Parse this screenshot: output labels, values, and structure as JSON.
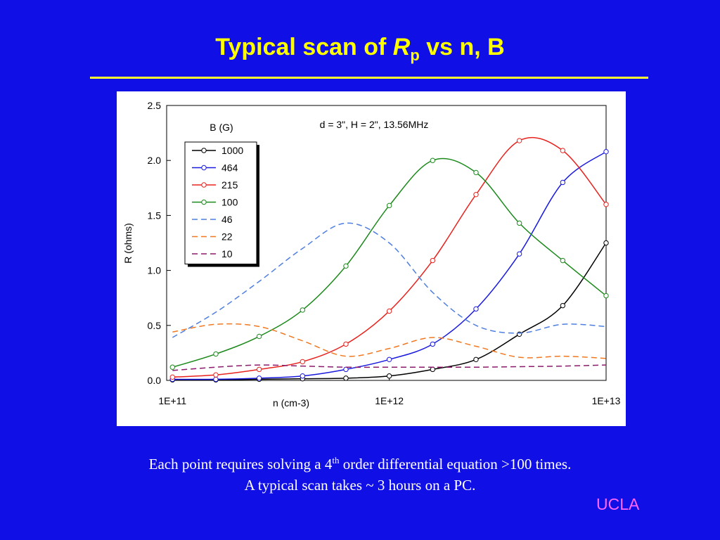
{
  "slide": {
    "title": {
      "prefix": "Typical scan of ",
      "symbol": "R",
      "subscript": "p",
      "suffix": " vs n, B"
    },
    "caption": {
      "line1_start": "Each point requires solving a 4",
      "line1_sup": "th",
      "line1_end": " order differential equation >100 times.",
      "line2": "A typical scan takes ~ 3 hours on a PC."
    },
    "logo": "UCLA"
  },
  "chart_data": {
    "type": "line",
    "annotation": "d = 3\", H = 2\", 13.56MHz",
    "legend_title": "B (G)",
    "legend": "upper left",
    "x_label": "n (cm-3)",
    "y_label": "R (ohms)",
    "xlog": true,
    "xlim": [
      94000000000.0,
      10000000000000.0
    ],
    "xticks": [
      {
        "value": 100000000000.0,
        "label": "1E+11"
      },
      {
        "value": 1000000000000.0,
        "label": "1E+12"
      },
      {
        "value": 10000000000000.0,
        "label": "1E+13"
      }
    ],
    "ylim": [
      0,
      2.5
    ],
    "yticks": [
      {
        "value": 0,
        "label": "0.0"
      },
      0.5,
      {
        "value": 1,
        "label": "1.0"
      },
      1.5,
      {
        "value": 2,
        "label": "2.0"
      },
      2.5
    ],
    "x": [
      100000000000.0,
      158500000000.0,
      251200000000.0,
      398100000000.0,
      631000000000.0,
      1000000000000.0,
      1585000000000.0,
      2512000000000.0,
      3981000000000.0,
      6310000000000.0,
      10000000000000.0
    ],
    "series": [
      {
        "name": "1000",
        "color": "#000000",
        "markers": true,
        "values": [
          0.005,
          0.005,
          0.01,
          0.015,
          0.02,
          0.04,
          0.1,
          0.19,
          0.42,
          0.68,
          1.25
        ]
      },
      {
        "name": "464",
        "color": "#1a1adf",
        "markers": true,
        "values": [
          0.01,
          0.01,
          0.02,
          0.04,
          0.1,
          0.19,
          0.33,
          0.65,
          1.15,
          1.8,
          2.08
        ]
      },
      {
        "name": "215",
        "color": "#e8231e",
        "markers": true,
        "values": [
          0.03,
          0.05,
          0.1,
          0.17,
          0.33,
          0.63,
          1.09,
          1.69,
          2.18,
          2.09,
          1.6
        ]
      },
      {
        "name": "100",
        "color": "#1b8a1b",
        "markers": true,
        "values": [
          0.12,
          0.24,
          0.4,
          0.64,
          1.04,
          1.59,
          2.0,
          1.89,
          1.43,
          1.09,
          0.77
        ]
      },
      {
        "name": "46",
        "color": "#4f7fe0",
        "dashed": true,
        "values": [
          0.39,
          0.62,
          0.9,
          1.2,
          1.43,
          1.25,
          0.8,
          0.5,
          0.43,
          0.51,
          0.49
        ]
      },
      {
        "name": "22",
        "color": "#f07820",
        "dashed": true,
        "values": [
          0.44,
          0.51,
          0.49,
          0.36,
          0.22,
          0.29,
          0.39,
          0.31,
          0.21,
          0.22,
          0.2
        ]
      },
      {
        "name": "10",
        "color": "#8b1a6b",
        "dashed": true,
        "values": [
          0.09,
          0.12,
          0.14,
          0.13,
          0.12,
          0.12,
          0.12,
          0.12,
          0.125,
          0.13,
          0.14
        ]
      }
    ]
  }
}
